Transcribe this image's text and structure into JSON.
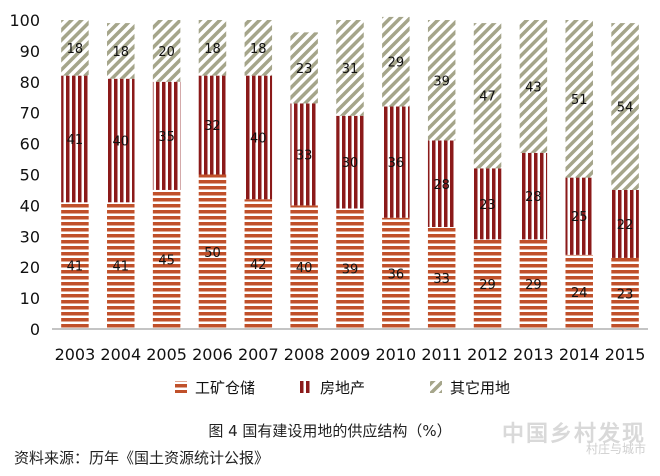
{
  "chart_data": {
    "type": "bar",
    "stacked": true,
    "categories": [
      "2003",
      "2004",
      "2005",
      "2006",
      "2007",
      "2008",
      "2009",
      "2010",
      "2011",
      "2012",
      "2013",
      "2014",
      "2015"
    ],
    "series": [
      {
        "name": "工矿仓储",
        "values": [
          41,
          41,
          45,
          50,
          42,
          40,
          39,
          36,
          33,
          29,
          29,
          24,
          23
        ],
        "color": "#c0502a",
        "pattern": "horizontal-stripes"
      },
      {
        "name": "房地产",
        "values": [
          41,
          40,
          35,
          32,
          40,
          33,
          30,
          36,
          28,
          23,
          28,
          25,
          22
        ],
        "color": "#8b1a1a",
        "pattern": "vertical-stripes"
      },
      {
        "name": "其它用地",
        "values": [
          18,
          18,
          20,
          18,
          18,
          23,
          31,
          29,
          39,
          47,
          43,
          51,
          54
        ],
        "color": "#a5a58a",
        "pattern": "diagonal-stripes"
      }
    ],
    "ylim": [
      0,
      100
    ],
    "yticks": [
      0,
      10,
      20,
      30,
      40,
      50,
      60,
      70,
      80,
      90,
      100
    ],
    "legend_position": "bottom",
    "grid": false
  },
  "caption": "图 4  国有建设用地的供应结构（%）",
  "source": "资料来源：历年《国土资源统计公报》",
  "watermark": "中国乡村发现",
  "watermark_sub": "村庄与城市"
}
